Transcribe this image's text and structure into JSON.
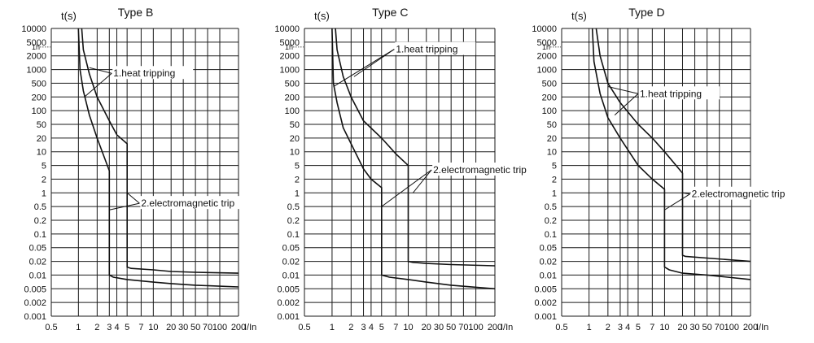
{
  "chart_data": [
    {
      "type": "line",
      "title": "Type B",
      "ylabel": "t(s)",
      "xlabel": "I/In",
      "x_scale": "custom-nonuniform",
      "y_scale": "log",
      "x_ticks": [
        "0.5",
        "1",
        "2",
        "3",
        "4",
        "5",
        "7",
        "10",
        "20",
        "30",
        "50",
        "70",
        "100",
        "200"
      ],
      "y_ticks": [
        "0.001",
        "0.002",
        "0.005",
        "0.01",
        "0.02",
        "0.05",
        "0.1",
        "0.2",
        "0.5",
        "1",
        "2",
        "5",
        "10",
        "20",
        "50",
        "100",
        "200",
        "500",
        "1000",
        "2000",
        "5000",
        "10000"
      ],
      "xlim": [
        "0.5",
        "200"
      ],
      "ylim": [
        0.001,
        10000
      ],
      "marker_1h": "1h",
      "grid": true,
      "series": [
        {
          "x": [
            1.0,
            1.06,
            1.2,
            1.5,
            2,
            2.5,
            3,
            3,
            3.5,
            5,
            10,
            20,
            50,
            200
          ],
          "y": [
            10000,
            1000,
            300,
            80,
            20,
            8,
            3.5,
            0.01,
            0.009,
            0.008,
            0.007,
            0.0065,
            0.006,
            0.0055
          ]
        },
        {
          "x": [
            1.13,
            1.2,
            1.5,
            2,
            3,
            4,
            5,
            5,
            5.5,
            10,
            20,
            50,
            200
          ],
          "y": [
            10000,
            3000,
            800,
            200,
            60,
            25,
            15,
            0.015,
            0.014,
            0.013,
            0.012,
            0.0115,
            0.011
          ]
        }
      ],
      "annotations": [
        {
          "text": "1.heat tripping",
          "x": 3.5,
          "y": 700,
          "points": [
            [
              1.5,
              1100
            ],
            [
              1.25,
              200
            ]
          ]
        },
        {
          "text": "2.electromagnetic trip",
          "x": 7,
          "y": 0.5,
          "points": [
            [
              5,
              1.0
            ],
            [
              3,
              0.4
            ]
          ]
        }
      ]
    },
    {
      "type": "line",
      "title": "Type C",
      "ylabel": "t(s)",
      "xlabel": "I/In",
      "x_scale": "custom-nonuniform",
      "y_scale": "log",
      "x_ticks": [
        "0.5",
        "1",
        "2",
        "3",
        "4",
        "5",
        "7",
        "10",
        "20",
        "30",
        "50",
        "70",
        "100",
        "200"
      ],
      "y_ticks": [
        "0.001",
        "0.002",
        "0.005",
        "0.01",
        "0.02",
        "0.05",
        "0.1",
        "0.2",
        "0.5",
        "1",
        "2",
        "5",
        "10",
        "20",
        "50",
        "100",
        "200",
        "500",
        "1000",
        "2000",
        "5000",
        "10000"
      ],
      "xlim": [
        "0.5",
        "200"
      ],
      "ylim": [
        0.001,
        10000
      ],
      "marker_1h": "1h",
      "grid": true,
      "series": [
        {
          "x": [
            1.0,
            1.05,
            1.2,
            1.5,
            2,
            3,
            4,
            5,
            5,
            6,
            10,
            20,
            50,
            200
          ],
          "y": [
            10000,
            500,
            150,
            40,
            15,
            4,
            2,
            1.3,
            0.01,
            0.009,
            0.008,
            0.007,
            0.006,
            0.005
          ]
        },
        {
          "x": [
            1.13,
            1.2,
            1.5,
            2,
            3,
            5,
            7,
            10,
            10,
            12,
            20,
            50,
            200
          ],
          "y": [
            10000,
            3000,
            700,
            200,
            60,
            20,
            9,
            5,
            0.02,
            0.019,
            0.018,
            0.017,
            0.016
          ]
        }
      ],
      "annotations": [
        {
          "text": "1.heat tripping",
          "x": 7,
          "y": 2500,
          "points": [
            [
              1.05,
              400
            ],
            [
              2.2,
              700
            ]
          ]
        },
        {
          "text": "2.electromagnetic trip",
          "x": 25,
          "y": 3,
          "points": [
            [
              12,
              1.0
            ],
            [
              5,
              0.5
            ]
          ]
        }
      ]
    },
    {
      "type": "line",
      "title": "Type D",
      "ylabel": "t(s)",
      "xlabel": "I/In",
      "x_scale": "custom-nonuniform",
      "y_scale": "log",
      "x_ticks": [
        "0.5",
        "1",
        "2",
        "3",
        "4",
        "5",
        "7",
        "10",
        "20",
        "30",
        "50",
        "70",
        "100",
        "200"
      ],
      "y_ticks": [
        "0.001",
        "0.002",
        "0.005",
        "0.01",
        "0.02",
        "0.05",
        "0.1",
        "0.2",
        "0.5",
        "1",
        "2",
        "5",
        "10",
        "20",
        "50",
        "100",
        "200",
        "500",
        "1000",
        "2000",
        "5000",
        "10000"
      ],
      "xlim": [
        "0.5",
        "200"
      ],
      "ylim": [
        0.001,
        10000
      ],
      "marker_1h": "1h",
      "grid": true,
      "series": [
        {
          "x": [
            1.13,
            1.2,
            1.5,
            2,
            3,
            5,
            7,
            10,
            10,
            12,
            20,
            50,
            200
          ],
          "y": [
            10000,
            1500,
            250,
            70,
            20,
            5,
            2,
            1.2,
            0.015,
            0.013,
            0.011,
            0.01,
            0.008
          ]
        },
        {
          "x": [
            1.3,
            1.5,
            2,
            3,
            5,
            7,
            10,
            20,
            20,
            22,
            50,
            100,
            200
          ],
          "y": [
            10000,
            2000,
            500,
            150,
            50,
            20,
            10,
            3,
            0.03,
            0.028,
            0.025,
            0.022,
            0.02
          ]
        }
      ],
      "annotations": [
        {
          "text": "1.heat tripping",
          "x": 5.2,
          "y": 200,
          "points": [
            [
              2,
              400
            ],
            [
              2.5,
              80
            ]
          ]
        },
        {
          "text": "2.electromagnetic trip",
          "x": 27,
          "y": 0.8,
          "points": [
            [
              20,
              1.0
            ],
            [
              10,
              0.4
            ]
          ]
        }
      ]
    }
  ]
}
